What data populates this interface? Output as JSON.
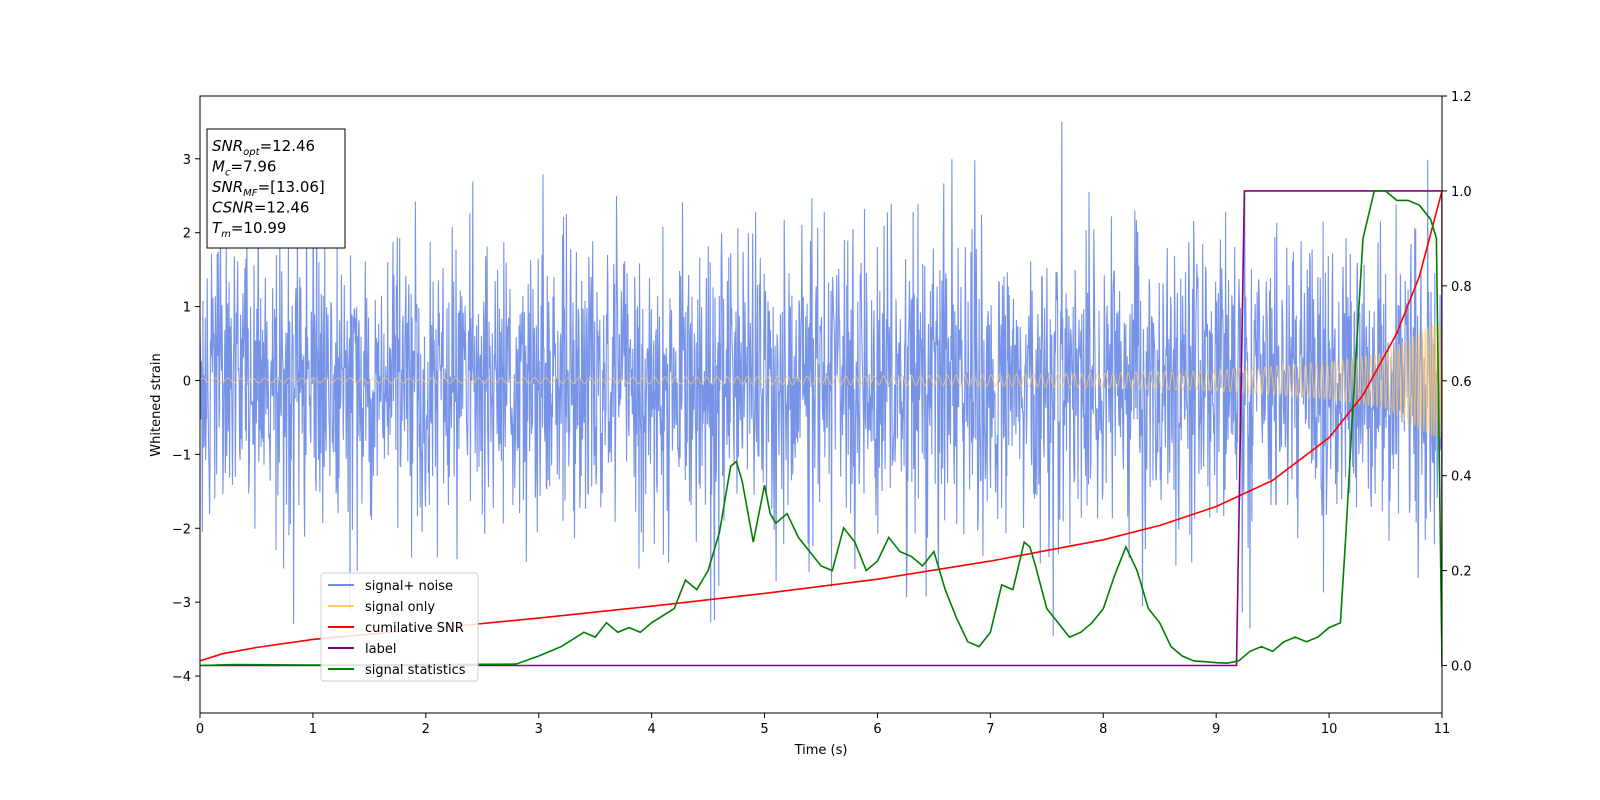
{
  "chart_data": {
    "type": "line",
    "xlabel": "Time (s)",
    "ylabel": "Whitened strain",
    "xlim": [
      0,
      11
    ],
    "ylim": [
      -4.5,
      3.85
    ],
    "y2lim": [
      -0.1,
      1.2
    ],
    "x_ticks": [
      "0",
      "1",
      "2",
      "3",
      "4",
      "5",
      "6",
      "7",
      "8",
      "9",
      "10",
      "11"
    ],
    "y_ticks": [
      "−4",
      "−3",
      "−2",
      "−1",
      "0",
      "1",
      "2",
      "3"
    ],
    "y2_ticks": [
      "0.0",
      "0.2",
      "0.4",
      "0.6",
      "0.8",
      "1.0",
      "1.2"
    ],
    "grid": false,
    "legend_position": "lower-left",
    "annotation": {
      "lines": [
        {
          "sym": "SNR",
          "sub": "opt",
          "rest": "=12.46"
        },
        {
          "sym": "M",
          "sub": "c",
          "rest": "=7.96"
        },
        {
          "sym": "SNR",
          "sub": "MF",
          "rest": "=[13.06]"
        },
        {
          "sym": "CSNR",
          "sub": "",
          "rest": "=12.46"
        },
        {
          "sym": "T",
          "sub": "m",
          "rest": "=10.99"
        }
      ]
    },
    "series": [
      {
        "name": "signal+ noise",
        "color": "#6f8de6",
        "axis": "left",
        "kind": "noise",
        "envelope": {
          "typical_amplitude": 1.6,
          "max_peak": 3.5,
          "min_peak": -4.15
        }
      },
      {
        "name": "signal only",
        "color": "#ffc868",
        "axis": "left",
        "kind": "chirp",
        "amplitude": [
          [
            0,
            0.03
          ],
          [
            3,
            0.04
          ],
          [
            6,
            0.06
          ],
          [
            8,
            0.1
          ],
          [
            9,
            0.14
          ],
          [
            10,
            0.25
          ],
          [
            10.5,
            0.38
          ],
          [
            10.9,
            0.75
          ],
          [
            11,
            0.8
          ]
        ]
      },
      {
        "name": "cumilative SNR",
        "color": "#ff0000",
        "axis": "right",
        "x": [
          0,
          0.2,
          0.5,
          1,
          2,
          3,
          4,
          5,
          6,
          7,
          8,
          8.5,
          9,
          9.5,
          10,
          10.3,
          10.6,
          10.8,
          11
        ],
        "y": [
          0.01,
          0.025,
          0.038,
          0.055,
          0.077,
          0.1,
          0.125,
          0.152,
          0.182,
          0.22,
          0.265,
          0.295,
          0.335,
          0.39,
          0.48,
          0.57,
          0.7,
          0.82,
          1.0
        ]
      },
      {
        "name": "label",
        "color": "#800080",
        "axis": "right",
        "x": [
          0,
          9.18,
          9.25,
          10.88,
          11,
          11
        ],
        "y": [
          0,
          0,
          1,
          1,
          1,
          0
        ]
      },
      {
        "name": "signal statistics",
        "color": "#008000",
        "axis": "right",
        "x": [
          0,
          0.3,
          1,
          2,
          2.8,
          3,
          3.2,
          3.4,
          3.5,
          3.6,
          3.7,
          3.8,
          3.9,
          4,
          4.2,
          4.3,
          4.4,
          4.5,
          4.6,
          4.7,
          4.75,
          4.8,
          4.9,
          5,
          5.05,
          5.1,
          5.2,
          5.3,
          5.4,
          5.5,
          5.6,
          5.7,
          5.8,
          5.9,
          6,
          6.1,
          6.2,
          6.3,
          6.4,
          6.5,
          6.6,
          6.7,
          6.8,
          6.9,
          7,
          7.1,
          7.2,
          7.3,
          7.35,
          7.4,
          7.5,
          7.6,
          7.7,
          7.8,
          7.9,
          8,
          8.1,
          8.2,
          8.3,
          8.4,
          8.5,
          8.6,
          8.7,
          8.8,
          8.9,
          9,
          9.1,
          9.2,
          9.3,
          9.4,
          9.5,
          9.6,
          9.7,
          9.8,
          9.9,
          10,
          10.1,
          10.15,
          10.2,
          10.3,
          10.4,
          10.5,
          10.6,
          10.7,
          10.8,
          10.9,
          10.95,
          11
        ],
        "y": [
          0,
          0.002,
          0.001,
          0.002,
          0.003,
          0.02,
          0.04,
          0.07,
          0.06,
          0.09,
          0.07,
          0.08,
          0.07,
          0.09,
          0.12,
          0.18,
          0.16,
          0.2,
          0.28,
          0.42,
          0.43,
          0.39,
          0.26,
          0.38,
          0.32,
          0.3,
          0.32,
          0.27,
          0.24,
          0.21,
          0.2,
          0.29,
          0.26,
          0.2,
          0.22,
          0.27,
          0.24,
          0.23,
          0.21,
          0.24,
          0.16,
          0.1,
          0.05,
          0.04,
          0.07,
          0.17,
          0.16,
          0.26,
          0.25,
          0.21,
          0.12,
          0.09,
          0.06,
          0.07,
          0.09,
          0.12,
          0.19,
          0.25,
          0.2,
          0.12,
          0.09,
          0.04,
          0.02,
          0.01,
          0.008,
          0.006,
          0.005,
          0.01,
          0.03,
          0.04,
          0.03,
          0.05,
          0.06,
          0.05,
          0.06,
          0.08,
          0.09,
          0.28,
          0.5,
          0.9,
          1.0,
          1.0,
          0.98,
          0.98,
          0.97,
          0.94,
          0.9,
          0.0
        ]
      }
    ]
  }
}
